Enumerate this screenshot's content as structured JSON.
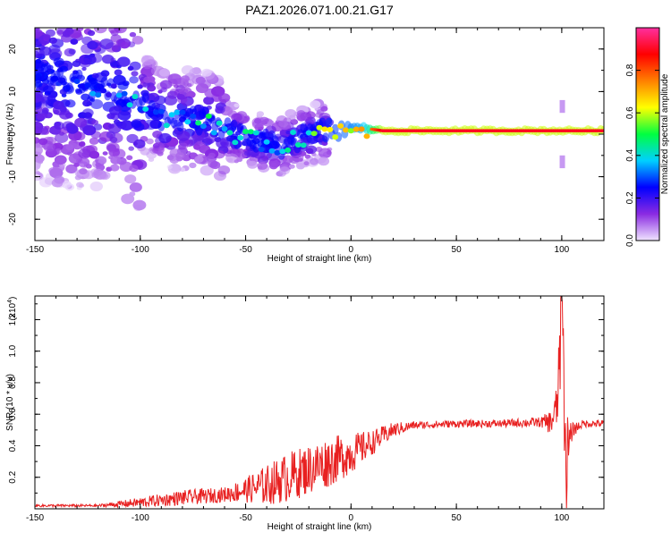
{
  "page": {
    "title": "PAZ1.2026.071.00.21.G17"
  },
  "chart_data": [
    {
      "type": "heatmap",
      "title": "PAZ1.2026.071.00.21.G17",
      "xlabel": "Height of straight line (km)",
      "ylabel": "Frequency (Hz)",
      "xlim": [
        -150,
        120
      ],
      "ylim": [
        -25,
        25
      ],
      "xticks": [
        -150,
        -100,
        -50,
        0,
        50,
        100
      ],
      "yticks": [
        -20,
        -10,
        0,
        10,
        20
      ],
      "colorbar": {
        "label": "Normalized spectral amplitude",
        "range": [
          0.0,
          1.0
        ],
        "ticks": [
          "0.0",
          "0.2",
          "0.4",
          "0.6",
          "0.8"
        ],
        "tick_values": [
          0.0,
          0.2,
          0.4,
          0.6,
          0.8
        ],
        "colors": [
          "#f0e4ff",
          "#8a2be2",
          "#0000ff",
          "#00d0ff",
          "#00ff40",
          "#ffff00",
          "#ff8000",
          "#ff0000",
          "#ff2fa0"
        ]
      },
      "ridge": [
        {
          "x": -150,
          "y": 14
        },
        {
          "x": -110,
          "y": 10
        },
        {
          "x": -90,
          "y": 4
        },
        {
          "x": -70,
          "y": 3
        },
        {
          "x": -50,
          "y": -1
        },
        {
          "x": -35,
          "y": -3
        },
        {
          "x": -25,
          "y": -1
        },
        {
          "x": -15,
          "y": 0.5
        },
        {
          "x": 5,
          "y": 1.5
        },
        {
          "x": 15,
          "y": 0.8
        },
        {
          "x": 120,
          "y": 0.8
        }
      ],
      "ridge_amplitude": [
        0.3,
        0.3,
        0.35,
        0.4,
        0.4,
        0.35,
        0.4,
        0.55,
        0.65,
        0.9,
        0.9
      ]
    },
    {
      "type": "line",
      "xlabel": "Height of straight line (km)",
      "ylabel": "SNR (10 * v/v)",
      "scale_label": "(x10",
      "scale_exp": "4",
      "xlim": [
        -150,
        120
      ],
      "ylim": [
        0,
        1.35
      ],
      "xticks": [
        -150,
        -100,
        -50,
        0,
        50,
        100
      ],
      "yticks": [
        0.2,
        0.4,
        0.6,
        0.8,
        1.0,
        1.2
      ],
      "ytick_labels": [
        "0.2",
        "0.4",
        "0.6",
        "0.8",
        "1.0",
        "1.2"
      ],
      "series": [
        {
          "name": "SNR",
          "color": "#e82020",
          "x": [
            -150,
            -120,
            -100,
            -80,
            -60,
            -50,
            -40,
            -30,
            -20,
            -10,
            0,
            10,
            20,
            30,
            50,
            70,
            90,
            95,
            98,
            100,
            102,
            105,
            110,
            120
          ],
          "y": [
            0.02,
            0.02,
            0.04,
            0.07,
            0.09,
            0.12,
            0.15,
            0.2,
            0.25,
            0.3,
            0.35,
            0.42,
            0.5,
            0.53,
            0.54,
            0.54,
            0.55,
            0.55,
            0.65,
            1.3,
            0.3,
            0.5,
            0.54,
            0.54
          ],
          "noise": [
            0.005,
            0.005,
            0.02,
            0.03,
            0.03,
            0.05,
            0.08,
            0.1,
            0.1,
            0.1,
            0.08,
            0.05,
            0.03,
            0.015,
            0.015,
            0.015,
            0.02,
            0.05,
            0.1,
            0.1,
            0.15,
            0.03,
            0.015,
            0.015
          ]
        }
      ]
    }
  ]
}
